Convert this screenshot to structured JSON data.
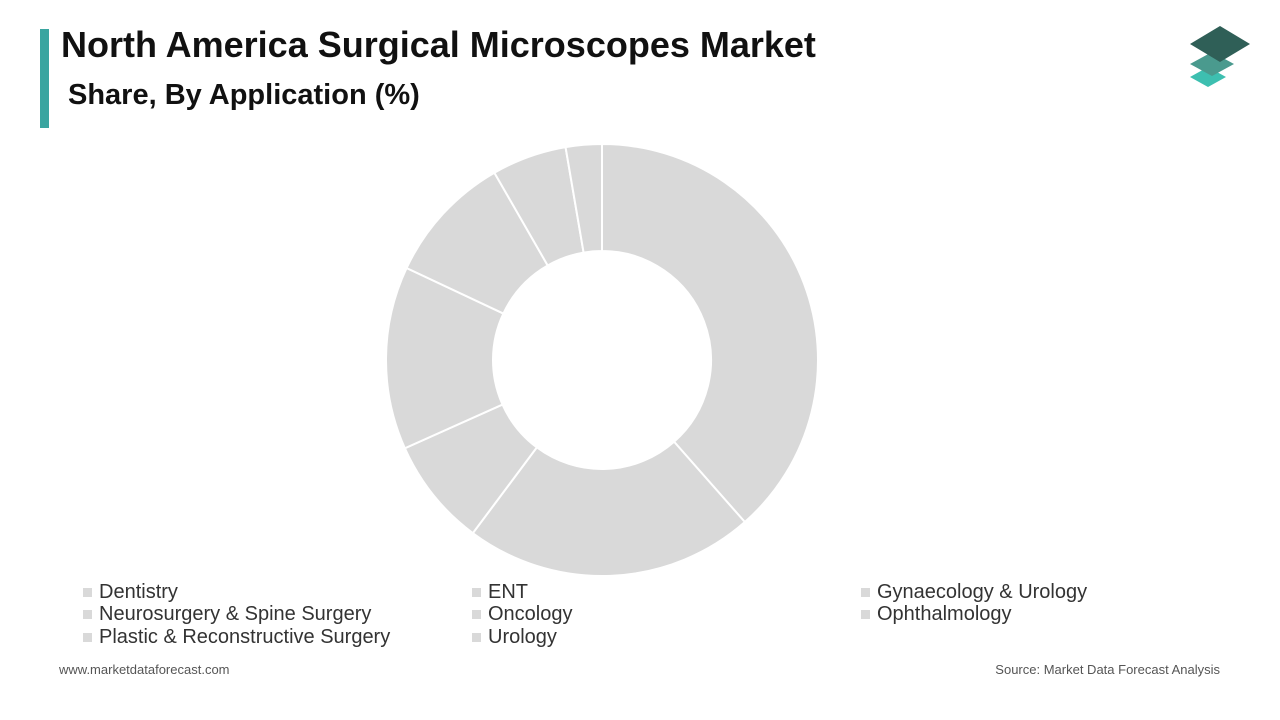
{
  "header": {
    "title": "North America Surgical Microscopes Market",
    "subtitle": "Share, By Application (%)"
  },
  "footer": {
    "website": "www.marketdataforecast.com",
    "source": "Source: Market Data Forecast Analysis"
  },
  "colors": {
    "accent": "#3aa5a0",
    "slice": "#d9d9d9",
    "slice_border": "#ffffff",
    "logo_dark": "#2f5f57",
    "logo_mid": "#4a9a8e",
    "logo_light": "#3dbfb0"
  },
  "logo": {
    "icon": "stacked-layers-icon"
  },
  "chart_data": {
    "type": "pie",
    "donut": true,
    "legend_position": "bottom",
    "categories": [
      "Dentistry",
      "ENT",
      "Gynaecology & Urology",
      "Neurosurgery & Spine Surgery",
      "Oncology",
      "Ophthalmology",
      "Plastic & Reconstructive Surgery",
      "Urology"
    ],
    "values": [
      38.5,
      21.7,
      8.1,
      13.7,
      9.7,
      5.6,
      2.7,
      0
    ]
  }
}
